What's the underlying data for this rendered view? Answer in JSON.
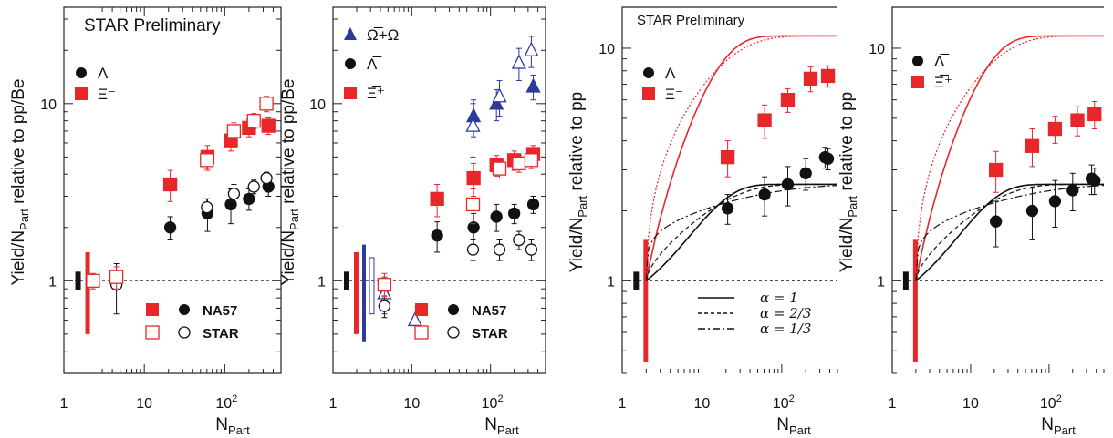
{
  "chart_data": [
    {
      "type": "scatter",
      "id": "p1",
      "annotation": "STAR Preliminary",
      "ylabel": "Yield/N_Part relative to pp/Be",
      "xlabel": "N_Part",
      "xscale": "log",
      "yscale": "log",
      "xlim": [
        1,
        500
      ],
      "ylim": [
        0.3,
        35
      ],
      "xticks": [
        "1",
        "10",
        "10^2"
      ],
      "yticks": [
        "1",
        "10"
      ],
      "reference_line_y": 1,
      "series": [
        {
          "name": "Λ",
          "source": "NA57",
          "color": "#111111",
          "marker": "filled-circle",
          "x": [
            21,
            61,
            119,
            200,
            349
          ],
          "y": [
            2.0,
            2.4,
            2.7,
            2.9,
            3.4
          ],
          "err": [
            0.3,
            0.5,
            0.6,
            0.4,
            0.4
          ]
        },
        {
          "name": "Λ",
          "source": "STAR",
          "color": "#111111",
          "marker": "open-circle",
          "x": [
            4.5,
            60,
            130,
            230,
            330
          ],
          "y": [
            0.95,
            2.6,
            3.1,
            3.4,
            3.8
          ],
          "err": [
            0.3,
            0.3,
            0.4,
            0.3,
            0.3
          ]
        },
        {
          "name": "Ξ⁻",
          "source": "NA57",
          "color": "#e8272a",
          "marker": "filled-square",
          "x": [
            21,
            61,
            119,
            200,
            349
          ],
          "y": [
            3.5,
            5.0,
            6.2,
            7.3,
            7.5
          ],
          "err": [
            0.7,
            0.8,
            0.8,
            0.8,
            0.8
          ]
        },
        {
          "name": "Ξ⁻",
          "source": "STAR",
          "color": "#e8272a",
          "marker": "open-square",
          "x": [
            2.3,
            4.5,
            60,
            130,
            230,
            330
          ],
          "y": [
            1.0,
            1.05,
            4.8,
            7.0,
            8.0,
            10.0
          ],
          "err": [
            0.1,
            0.15,
            0.5,
            0.8,
            0.8,
            1.0
          ]
        }
      ],
      "legend_species": [
        "Λ",
        "Ξ⁻"
      ],
      "legend_sources": [
        "NA57",
        "STAR"
      ]
    },
    {
      "type": "scatter",
      "id": "p2",
      "ylabel": "Yield/N_Part relative to pp/Be",
      "xlabel": "N_Part",
      "xscale": "log",
      "yscale": "log",
      "xlim": [
        1,
        500
      ],
      "ylim": [
        0.3,
        35
      ],
      "xticks": [
        "1",
        "10",
        "10^2"
      ],
      "yticks": [
        "1",
        "10"
      ],
      "reference_line_y": 1,
      "series": [
        {
          "name": "Ω̅+Ω",
          "source": "NA57",
          "color": "#2b3a9b",
          "marker": "filled-triangle",
          "x": [
            61,
            119,
            349
          ],
          "y": [
            8.5,
            10.0,
            12.5
          ],
          "err": [
            2.0,
            2.0,
            2.0
          ]
        },
        {
          "name": "Ω̅+Ω",
          "source": "STAR",
          "color": "#2b3a9b",
          "marker": "open-triangle",
          "x": [
            4.5,
            11,
            60,
            130,
            230,
            330
          ],
          "y": [
            0.85,
            0.6,
            7.5,
            11.0,
            17.0,
            20.0
          ],
          "err": [
            0.2,
            0,
            2.5,
            2.5,
            3.5,
            4.0
          ]
        },
        {
          "name": "Λ̅",
          "source": "NA57",
          "color": "#111111",
          "marker": "filled-circle",
          "x": [
            21,
            61,
            119,
            200,
            349
          ],
          "y": [
            1.8,
            2.0,
            2.3,
            2.4,
            2.7
          ],
          "err": [
            0.35,
            0.4,
            0.4,
            0.3,
            0.3
          ]
        },
        {
          "name": "Λ̅",
          "source": "STAR",
          "color": "#111111",
          "marker": "open-circle",
          "x": [
            4.5,
            60,
            130,
            230,
            330
          ],
          "y": [
            0.72,
            1.5,
            1.5,
            1.7,
            1.5
          ],
          "err": [
            0.1,
            0.2,
            0.2,
            0.2,
            0.2
          ]
        },
        {
          "name": "Ξ̅⁺",
          "source": "NA57",
          "color": "#e8272a",
          "marker": "filled-square",
          "x": [
            21,
            61,
            119,
            200,
            349
          ],
          "y": [
            2.9,
            3.8,
            4.5,
            4.8,
            5.2
          ],
          "err": [
            0.6,
            0.8,
            0.6,
            0.6,
            0.6
          ]
        },
        {
          "name": "Ξ̅⁺",
          "source": "STAR",
          "color": "#e8272a",
          "marker": "open-square",
          "x": [
            4.5,
            60,
            130,
            230,
            330
          ],
          "y": [
            0.95,
            2.7,
            4.3,
            4.6,
            4.8
          ],
          "err": [
            0.15,
            0.6,
            0.5,
            0.5,
            0.5
          ]
        }
      ],
      "legend_species": [
        "Ω̅+Ω",
        "Λ̅",
        "Ξ̅⁺"
      ],
      "legend_sources": [
        "NA57",
        "STAR"
      ]
    },
    {
      "type": "line",
      "id": "p3",
      "annotation": "STAR Preliminary",
      "ylabel": "Yield/N_Part relative to pp",
      "xlabel": "N_Part",
      "xscale": "log",
      "yscale": "log",
      "xlim": [
        1,
        500
      ],
      "ylim": [
        0.4,
        15
      ],
      "xticks": [
        "1",
        "10",
        "10^2"
      ],
      "yticks": [
        "1",
        "10"
      ],
      "reference_line_y": 1,
      "series": [
        {
          "name": "Λ",
          "color": "#111111",
          "marker": "filled-circle",
          "x": [
            21,
            61,
            119,
            200,
            349,
            380
          ],
          "y": [
            2.05,
            2.35,
            2.6,
            2.9,
            3.4,
            3.35
          ],
          "err": [
            0.3,
            0.45,
            0.5,
            0.45,
            0.35,
            0.35
          ]
        },
        {
          "name": "Ξ⁻",
          "color": "#e8272a",
          "marker": "filled-square",
          "x": [
            21,
            61,
            119,
            230,
            380
          ],
          "y": [
            3.4,
            4.9,
            6.0,
            7.4,
            7.6
          ],
          "err": [
            0.6,
            0.8,
            0.7,
            0.9,
            0.8
          ]
        }
      ],
      "curves": [
        {
          "name": "α = 1",
          "color": "#e8272a",
          "dash": "solid",
          "asymptote": 11.3,
          "alpha": 1.0
        },
        {
          "name": "α = 2/3",
          "color": "#e8272a",
          "dash": "dotted",
          "asymptote": 11.3,
          "alpha": 0.667
        },
        {
          "name": "α = 1",
          "color": "#111111",
          "dash": "solid",
          "asymptote": 2.6,
          "alpha": 1.0
        },
        {
          "name": "α = 2/3",
          "color": "#111111",
          "dash": "dashed",
          "asymptote": 2.6,
          "alpha": 0.667
        },
        {
          "name": "α = 1/3",
          "color": "#111111",
          "dash": "dashdot",
          "asymptote": 2.6,
          "alpha": 0.333
        }
      ],
      "legend_species": [
        "Λ",
        "Ξ⁻"
      ],
      "legend_alpha": [
        "α = 1",
        "α = 2/3",
        "α = 1/3"
      ]
    },
    {
      "type": "line",
      "id": "p4",
      "ylabel": "Yield/N_Part relative to pp",
      "xlabel": "N_Part",
      "xscale": "log",
      "yscale": "log",
      "xlim": [
        1,
        500
      ],
      "ylim": [
        0.4,
        15
      ],
      "xticks": [
        "1",
        "10",
        "10^2"
      ],
      "yticks": [
        "1",
        "10"
      ],
      "reference_line_y": 1,
      "series": [
        {
          "name": "Λ̅",
          "color": "#111111",
          "marker": "filled-circle",
          "x": [
            21,
            61,
            119,
            200,
            349,
            380
          ],
          "y": [
            1.8,
            2.0,
            2.2,
            2.45,
            2.75,
            2.7
          ],
          "err": [
            0.4,
            0.5,
            0.5,
            0.45,
            0.4,
            0.35
          ]
        },
        {
          "name": "Ξ̅⁺",
          "color": "#e8272a",
          "marker": "filled-square",
          "x": [
            21,
            61,
            119,
            230,
            380
          ],
          "y": [
            3.0,
            3.8,
            4.5,
            4.9,
            5.2
          ],
          "err": [
            0.6,
            0.7,
            0.6,
            0.7,
            0.7
          ]
        }
      ],
      "curves": [
        {
          "name": "α = 1",
          "color": "#e8272a",
          "dash": "solid",
          "asymptote": 11.3,
          "alpha": 1.0
        },
        {
          "name": "α = 2/3",
          "color": "#e8272a",
          "dash": "dotted",
          "asymptote": 11.3,
          "alpha": 0.667
        },
        {
          "name": "α = 1",
          "color": "#111111",
          "dash": "solid",
          "asymptote": 2.6,
          "alpha": 1.0
        },
        {
          "name": "α = 2/3",
          "color": "#111111",
          "dash": "dashed",
          "asymptote": 2.6,
          "alpha": 0.667
        },
        {
          "name": "α = 1/3",
          "color": "#111111",
          "dash": "dashdot",
          "asymptote": 2.6,
          "alpha": 0.333
        }
      ],
      "legend_species": [
        "Λ̅",
        "Ξ̅⁺"
      ]
    }
  ]
}
